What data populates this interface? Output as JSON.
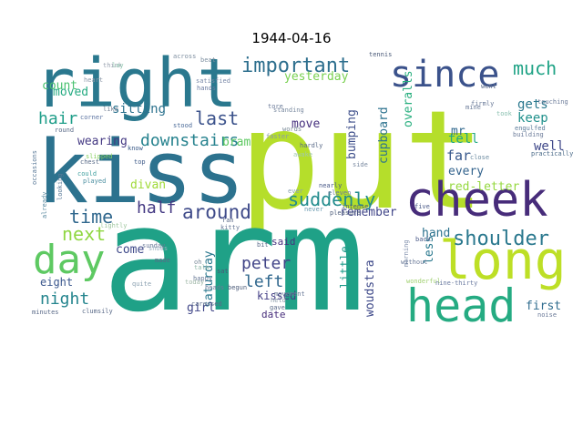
{
  "title": "1944-04-16",
  "words": [
    {
      "text": "put",
      "color": "#b5de2b"
    },
    {
      "text": "arm",
      "color": "#1fa187"
    },
    {
      "text": "kiss",
      "color": "#2c728e"
    },
    {
      "text": "right",
      "color": "#2a788e"
    },
    {
      "text": "cheek",
      "color": "#472c7a"
    },
    {
      "text": "long",
      "color": "#bddf26"
    },
    {
      "text": "head",
      "color": "#25ab82"
    },
    {
      "text": "since",
      "color": "#3b528b"
    },
    {
      "text": "day",
      "color": "#5ec962"
    },
    {
      "text": "much",
      "color": "#20a386"
    },
    {
      "text": "important",
      "color": "#2e6f8e"
    },
    {
      "text": "shoulder",
      "color": "#2a788e"
    },
    {
      "text": "suddenly",
      "color": "#228c8d"
    },
    {
      "text": "next",
      "color": "#90d743"
    },
    {
      "text": "time",
      "color": "#31688e"
    },
    {
      "text": "around",
      "color": "#3e4a89"
    },
    {
      "text": "half",
      "color": "#443983"
    },
    {
      "text": "last",
      "color": "#3b528b"
    },
    {
      "text": "hair",
      "color": "#1f9e89"
    },
    {
      "text": "night",
      "color": "#25858e"
    },
    {
      "text": "peter",
      "color": "#414487"
    },
    {
      "text": "left",
      "color": "#31688e"
    },
    {
      "text": "downstairs",
      "color": "#26828e"
    },
    {
      "text": "bram",
      "color": "#5ec962"
    },
    {
      "text": "sitting",
      "color": "#2c728e"
    },
    {
      "text": "count",
      "color": "#48c16e"
    },
    {
      "text": "moved",
      "color": "#25ab82"
    },
    {
      "text": "wearing",
      "color": "#443983"
    },
    {
      "text": "divan",
      "color": "#a0da39"
    },
    {
      "text": "saturday",
      "color": "#2a788e"
    },
    {
      "text": "kissed",
      "color": "#433e85"
    },
    {
      "text": "said",
      "color": "#46327e"
    },
    {
      "text": "date",
      "color": "#472d7b"
    },
    {
      "text": "girl",
      "color": "#404688"
    },
    {
      "text": "eight",
      "color": "#39568c"
    },
    {
      "text": "come",
      "color": "#3e4989"
    },
    {
      "text": "gets",
      "color": "#2a788e"
    },
    {
      "text": "keep",
      "color": "#21918c"
    },
    {
      "text": "tell",
      "color": "#22a884"
    },
    {
      "text": "well",
      "color": "#3f4889"
    },
    {
      "text": "far",
      "color": "#38588c"
    },
    {
      "text": "mr",
      "color": "#31688e"
    },
    {
      "text": "red-letter",
      "color": "#95d840"
    },
    {
      "text": "every",
      "color": "#33638d"
    },
    {
      "text": "hand",
      "color": "#2c728e"
    },
    {
      "text": "first",
      "color": "#2f6c8e"
    },
    {
      "text": "remember",
      "color": "#404588"
    },
    {
      "text": "move",
      "color": "#46307e"
    },
    {
      "text": "yesterday",
      "color": "#7ad151"
    },
    {
      "text": "bumping",
      "color": "#3d4e8a"
    },
    {
      "text": "cupboard",
      "color": "#2c728e"
    },
    {
      "text": "overalls",
      "color": "#29af7f"
    },
    {
      "text": "less",
      "color": "#2a788e"
    },
    {
      "text": "little",
      "color": "#1e9b8a"
    },
    {
      "text": "woudstra",
      "color": "#3e4989"
    },
    {
      "text": "across",
      "color": "#7e8fa0"
    },
    {
      "text": "beat",
      "color": "#7e8fa0"
    },
    {
      "text": "think",
      "color": "#9aa3b0"
    },
    {
      "text": "heart",
      "color": "#8c98a8"
    },
    {
      "text": "like",
      "color": "#7c8799"
    },
    {
      "text": "round",
      "color": "#5a6b88"
    },
    {
      "text": "corner",
      "color": "#5a72a0"
    },
    {
      "text": "chest",
      "color": "#5a6b88"
    },
    {
      "text": "could",
      "color": "#40a0a0"
    },
    {
      "text": "slipped",
      "color": "#88d060"
    },
    {
      "text": "played",
      "color": "#4a8ea0"
    },
    {
      "text": "top",
      "color": "#3e5a88"
    },
    {
      "text": "know",
      "color": "#3a5a88"
    },
    {
      "text": "stood",
      "color": "#4a6a98"
    },
    {
      "text": "hands",
      "color": "#6a7aa0"
    },
    {
      "text": "satisfied",
      "color": "#7a8aa8"
    },
    {
      "text": "tore",
      "color": "#6a7a98"
    },
    {
      "text": "tennis",
      "color": "#4a5a78"
    },
    {
      "text": "mine",
      "color": "#6a7a98"
    },
    {
      "text": "went",
      "color": "#5a6a88"
    },
    {
      "text": "touching",
      "color": "#6a7a98"
    },
    {
      "text": "firmly",
      "color": "#6a7a98"
    },
    {
      "text": "took",
      "color": "#8ac0b0"
    },
    {
      "text": "engulfed",
      "color": "#5a7a98"
    },
    {
      "text": "building",
      "color": "#6a7a98"
    },
    {
      "text": "practically",
      "color": "#4a6a88"
    },
    {
      "text": "close",
      "color": "#6a8aa0"
    },
    {
      "text": "side",
      "color": "#7a8aa0"
    },
    {
      "text": "standing",
      "color": "#7a8aa0"
    },
    {
      "text": "words",
      "color": "#7a8a98"
    },
    {
      "text": "faster",
      "color": "#8a9aa8"
    },
    {
      "text": "hardly",
      "color": "#5a6a88"
    },
    {
      "text": "nearly",
      "color": "#4a5a88"
    },
    {
      "text": "eleven",
      "color": "#6a7a98"
    },
    {
      "text": "intense",
      "color": "#4a5a78"
    },
    {
      "text": "pleasure",
      "color": "#4a5a78"
    },
    {
      "text": "never",
      "color": "#6a9ab0"
    },
    {
      "text": "awake",
      "color": "#a0c8b0"
    },
    {
      "text": "ever",
      "color": "#8aa0b0"
    },
    {
      "text": "five",
      "color": "#4a5a88"
    },
    {
      "text": "without",
      "color": "#6a7a98"
    },
    {
      "text": "back",
      "color": "#4a5a88"
    },
    {
      "text": "morning",
      "color": "#7a8aa8"
    },
    {
      "text": "wonderful",
      "color": "#a0d070"
    },
    {
      "text": "nine-thirty",
      "color": "#6a7aa0"
    },
    {
      "text": "noise",
      "color": "#6a7a98"
    },
    {
      "text": "minutes",
      "color": "#5a6a88"
    },
    {
      "text": "clumsily",
      "color": "#5a6a88"
    },
    {
      "text": "made",
      "color": "#5a6a88"
    },
    {
      "text": "oh",
      "color": "#7a8a98"
    },
    {
      "text": "talk",
      "color": "#90b8a8"
    },
    {
      "text": "sat",
      "color": "#4a5a78"
    },
    {
      "text": "today",
      "color": "#a0b8a8"
    },
    {
      "text": "heads",
      "color": "#6a7a98"
    },
    {
      "text": "ran",
      "color": "#5a6a88"
    },
    {
      "text": "kitty",
      "color": "#6a7a98"
    },
    {
      "text": "sunday",
      "color": "#6a7a98"
    },
    {
      "text": "happy",
      "color": "#6a7a98"
    },
    {
      "text": "caressed",
      "color": "#5a6a88"
    },
    {
      "text": "gave",
      "color": "#5a6a88"
    },
    {
      "text": "held",
      "color": "#8a9aa8"
    },
    {
      "text": "movement",
      "color": "#6a7a98"
    },
    {
      "text": "begun",
      "color": "#4a5a78"
    },
    {
      "text": "bit",
      "color": "#5a6a88"
    },
    {
      "text": "shoes",
      "color": "#9ab0c0"
    },
    {
      "text": "lightly",
      "color": "#a0c8a0"
    },
    {
      "text": "looking",
      "color": "#5a7a98"
    },
    {
      "text": "already",
      "color": "#5a8aa0"
    },
    {
      "text": "occasions",
      "color": "#5a7a98"
    },
    {
      "text": "lay",
      "color": "#90c8b0"
    },
    {
      "text": "quite",
      "color": "#8aa0b0"
    }
  ]
}
